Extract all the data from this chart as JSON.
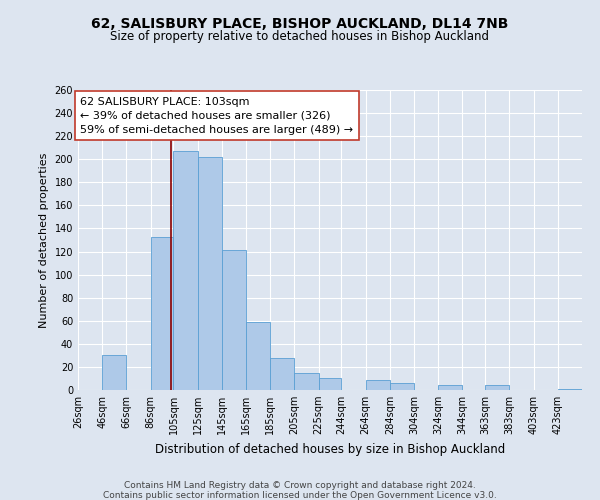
{
  "title": "62, SALISBURY PLACE, BISHOP AUCKLAND, DL14 7NB",
  "subtitle": "Size of property relative to detached houses in Bishop Auckland",
  "xlabel": "Distribution of detached houses by size in Bishop Auckland",
  "ylabel": "Number of detached properties",
  "footnote1": "Contains HM Land Registry data © Crown copyright and database right 2024.",
  "footnote2": "Contains public sector information licensed under the Open Government Licence v3.0.",
  "bar_edges": [
    26,
    46,
    66,
    86,
    105,
    125,
    145,
    165,
    185,
    205,
    225,
    244,
    264,
    284,
    304,
    324,
    344,
    363,
    383,
    403,
    423
  ],
  "bar_heights": [
    0,
    30,
    0,
    133,
    207,
    202,
    121,
    59,
    28,
    15,
    10,
    0,
    9,
    6,
    0,
    4,
    0,
    4,
    0,
    0,
    1
  ],
  "bar_color": "#aec9e8",
  "bar_edge_color": "#5a9fd4",
  "property_value": 103,
  "vline_color": "#8b0000",
  "annotation_line1": "62 SALISBURY PLACE: 103sqm",
  "annotation_line2": "← 39% of detached houses are smaller (326)",
  "annotation_line3": "59% of semi-detached houses are larger (489) →",
  "annotation_box_color": "#ffffff",
  "annotation_box_edge_color": "#c0392b",
  "ylim": [
    0,
    260
  ],
  "tick_labels": [
    "26sqm",
    "46sqm",
    "66sqm",
    "86sqm",
    "105sqm",
    "125sqm",
    "145sqm",
    "165sqm",
    "185sqm",
    "205sqm",
    "225sqm",
    "244sqm",
    "264sqm",
    "284sqm",
    "304sqm",
    "324sqm",
    "344sqm",
    "363sqm",
    "383sqm",
    "403sqm",
    "423sqm"
  ],
  "background_color": "#dde5f0",
  "plot_background_color": "#dde5f0",
  "grid_color": "#ffffff",
  "title_fontsize": 10,
  "subtitle_fontsize": 8.5,
  "xlabel_fontsize": 8.5,
  "ylabel_fontsize": 8,
  "tick_fontsize": 7,
  "annotation_fontsize": 8,
  "footnote_fontsize": 6.5
}
